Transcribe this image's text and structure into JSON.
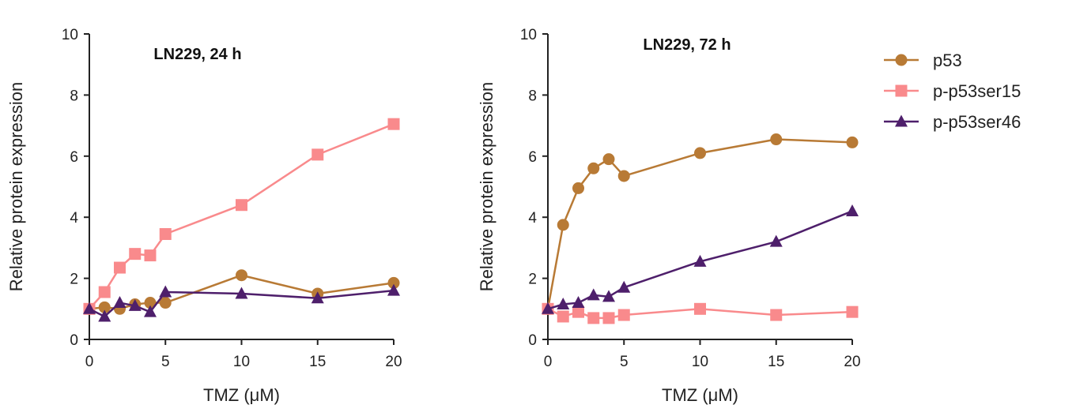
{
  "chart_data": [
    {
      "type": "line",
      "title": "LN229, 24 h",
      "xlabel": "TMZ (μM)",
      "ylabel": "Relative protein expression",
      "xlim": [
        0,
        20
      ],
      "ylim": [
        0,
        10
      ],
      "xticks": [
        0,
        5,
        10,
        15,
        20
      ],
      "yticks": [
        0,
        2,
        4,
        6,
        8,
        10
      ],
      "grid": false,
      "series": [
        {
          "name": "p53",
          "x": [
            0,
            1,
            2,
            3,
            4,
            5,
            10,
            15,
            20
          ],
          "values": [
            1.0,
            1.05,
            1.0,
            1.15,
            1.2,
            1.2,
            2.1,
            1.5,
            1.85
          ]
        },
        {
          "name": "p-p53ser15",
          "x": [
            0,
            1,
            2,
            3,
            4,
            5,
            10,
            15,
            20
          ],
          "values": [
            1.0,
            1.55,
            2.35,
            2.8,
            2.75,
            3.45,
            4.4,
            6.05,
            7.05
          ]
        },
        {
          "name": "p-p53ser46",
          "x": [
            0,
            1,
            2,
            3,
            4,
            5,
            10,
            15,
            20
          ],
          "values": [
            1.0,
            0.75,
            1.2,
            1.1,
            0.9,
            1.55,
            1.5,
            1.35,
            1.6
          ]
        }
      ]
    },
    {
      "type": "line",
      "title": "LN229, 72 h",
      "xlabel": "TMZ (μM)",
      "ylabel": "Relative protein expression",
      "xlim": [
        0,
        20
      ],
      "ylim": [
        0,
        10
      ],
      "xticks": [
        0,
        5,
        10,
        15,
        20
      ],
      "yticks": [
        0,
        2,
        4,
        6,
        8,
        10
      ],
      "grid": false,
      "series": [
        {
          "name": "p53",
          "x": [
            0,
            1,
            2,
            3,
            4,
            5,
            10,
            15,
            20
          ],
          "values": [
            1.0,
            3.75,
            4.95,
            5.6,
            5.9,
            5.35,
            6.1,
            6.55,
            6.45
          ]
        },
        {
          "name": "p-p53ser15",
          "x": [
            0,
            1,
            2,
            3,
            4,
            5,
            10,
            15,
            20
          ],
          "values": [
            1.0,
            0.75,
            0.9,
            0.7,
            0.7,
            0.8,
            1.0,
            0.8,
            0.9
          ]
        },
        {
          "name": "p-p53ser46",
          "x": [
            0,
            1,
            2,
            3,
            4,
            5,
            10,
            15,
            20
          ],
          "values": [
            1.0,
            1.15,
            1.2,
            1.45,
            1.4,
            1.7,
            2.55,
            3.2,
            4.2
          ]
        }
      ]
    }
  ],
  "legend": {
    "placement": "right",
    "items": [
      {
        "name": "p53",
        "marker": "circle",
        "color": "#b87a35"
      },
      {
        "name": "p-p53ser15",
        "marker": "square",
        "color": "#f98a8c"
      },
      {
        "name": "p-p53ser46",
        "marker": "triangle",
        "color": "#4e1f6b"
      }
    ]
  }
}
